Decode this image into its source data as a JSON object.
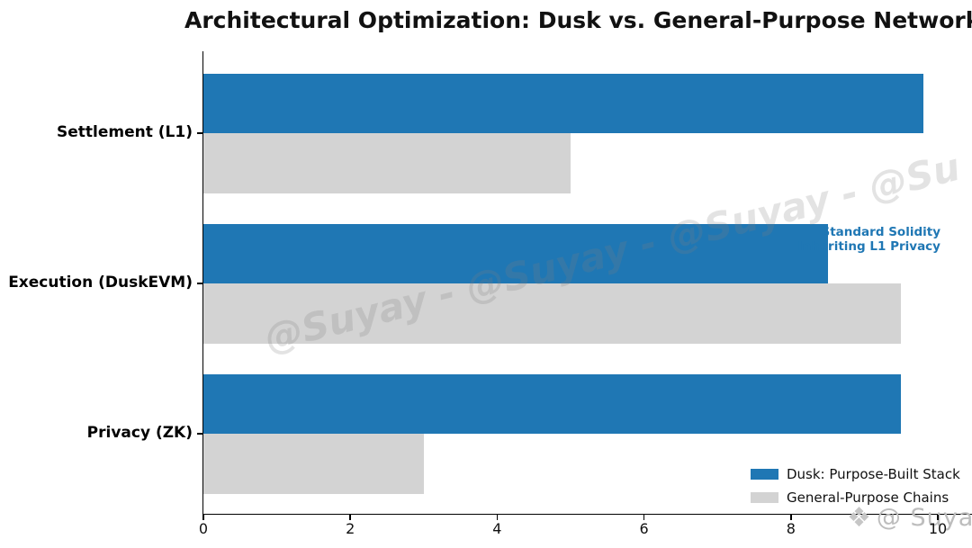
{
  "title": "Architectural Optimization: Dusk vs. General-Purpose Networks",
  "annotation": {
    "line1": "Standard Solidity",
    "line2": "Inheriting L1 Privacy",
    "color": "#1f77b4"
  },
  "legend": {
    "items": [
      {
        "label": "Dusk: Purpose-Built Stack",
        "color": "#1f77b4"
      },
      {
        "label": "General-Purpose Chains",
        "color": "#d3d3d3"
      }
    ]
  },
  "watermark": {
    "diagonal_text": "@Suyay - @Suyay - @Suyay - @Su",
    "logo_icon": "diamond-ornament-icon",
    "logo_glyph": "❖",
    "logo_text": "@ Suyay"
  },
  "chart_data": {
    "type": "bar",
    "orientation": "horizontal",
    "title": "Architectural Optimization: Dusk vs. General-Purpose Networks",
    "categories": [
      "Settlement (L1)",
      "Execution (DuskEVM)",
      "Privacy (ZK)"
    ],
    "series": [
      {
        "name": "Dusk: Purpose-Built Stack",
        "color": "#1f77b4",
        "values": [
          9.8,
          8.5,
          9.5
        ]
      },
      {
        "name": "General-Purpose Chains",
        "color": "#d3d3d3",
        "values": [
          5,
          9.5,
          3
        ]
      }
    ],
    "xlabel": "",
    "ylabel": "",
    "xlim": [
      0,
      10.45
    ],
    "xticks": [
      0,
      2,
      4,
      6,
      8,
      10
    ],
    "xtick_labels": [
      "0",
      "2",
      "4",
      "6",
      "8",
      "10"
    ],
    "grid": false,
    "legend_position": "lower right",
    "bar_annotation": "Standard Solidity\nInheriting L1 Privacy",
    "annotation_target": {
      "category": "Execution (DuskEVM)",
      "series": "Dusk: Purpose-Built Stack"
    }
  }
}
